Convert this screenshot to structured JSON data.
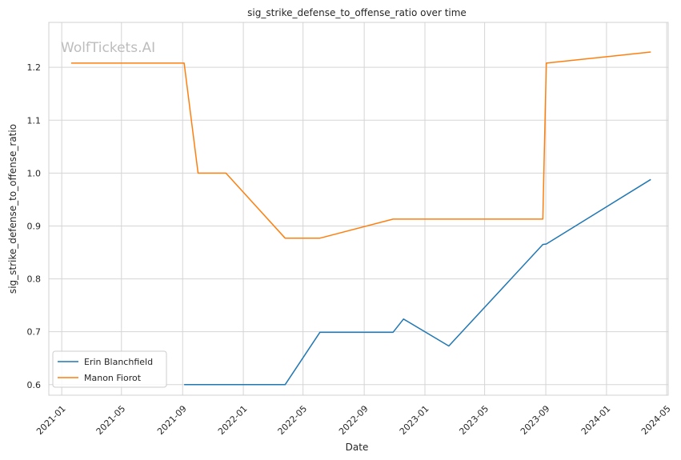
{
  "chart_data": {
    "type": "line",
    "title": "sig_strike_defense_to_offense_ratio over time",
    "xlabel": "Date",
    "ylabel": "sig_strike_defense_to_offense_ratio",
    "watermark": "WolfTickets.AI",
    "grid": true,
    "legend_position": "lower-left",
    "x_ticks": [
      "2021-01",
      "2021-05",
      "2021-09",
      "2022-01",
      "2022-05",
      "2022-09",
      "2023-01",
      "2023-05",
      "2023-09",
      "2024-01",
      "2024-05"
    ],
    "y_ticks": [
      0.6,
      0.7,
      0.8,
      0.9,
      1.0,
      1.1,
      1.2
    ],
    "y_tick_labels": [
      "0.6",
      "0.7",
      "0.8",
      "0.9",
      "1.0",
      "1.1",
      "1.2"
    ],
    "xlim": [
      "2020-12-06",
      "2024-05-04"
    ],
    "ylim": [
      0.58,
      1.285
    ],
    "series": [
      {
        "name": "Erin Blanchfield",
        "color": "#1f77b4",
        "points": [
          {
            "x": "2021-09-04",
            "y": 0.6
          },
          {
            "x": "2022-03-26",
            "y": 0.6
          },
          {
            "x": "2022-06-04",
            "y": 0.699
          },
          {
            "x": "2022-10-29",
            "y": 0.699
          },
          {
            "x": "2022-11-19",
            "y": 0.724
          },
          {
            "x": "2023-02-18",
            "y": 0.673
          },
          {
            "x": "2023-08-26",
            "y": 0.865
          },
          {
            "x": "2023-09-02",
            "y": 0.866
          },
          {
            "x": "2024-03-30",
            "y": 0.988
          }
        ]
      },
      {
        "name": "Manon Fiorot",
        "color": "#ff7f0e",
        "points": [
          {
            "x": "2021-01-20",
            "y": 1.208
          },
          {
            "x": "2021-09-04",
            "y": 1.208
          },
          {
            "x": "2021-10-02",
            "y": 1.0
          },
          {
            "x": "2021-11-27",
            "y": 1.0
          },
          {
            "x": "2022-03-26",
            "y": 0.877
          },
          {
            "x": "2022-06-04",
            "y": 0.877
          },
          {
            "x": "2022-10-29",
            "y": 0.913
          },
          {
            "x": "2023-08-26",
            "y": 0.913
          },
          {
            "x": "2023-09-02",
            "y": 1.208
          },
          {
            "x": "2024-03-30",
            "y": 1.229
          }
        ]
      }
    ]
  }
}
